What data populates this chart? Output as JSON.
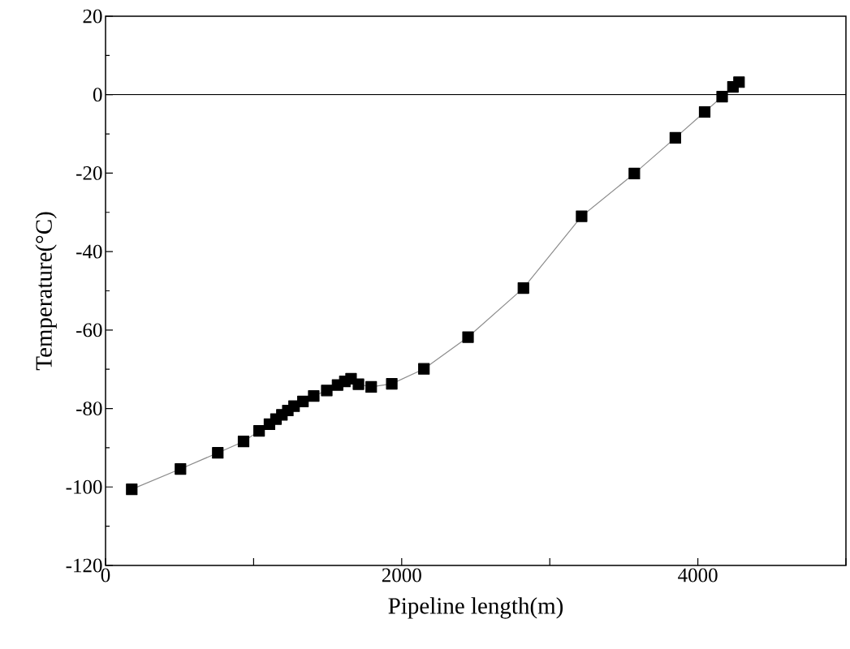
{
  "chart_data": {
    "type": "line",
    "xlabel": "Pipeline length(m)",
    "ylabel": "Temperature(°C)",
    "x": [
      177,
      506,
      758,
      932,
      1037,
      1107,
      1151,
      1191,
      1231,
      1273,
      1333,
      1406,
      1494,
      1567,
      1616,
      1658,
      1708,
      1794,
      1933,
      2150,
      2448,
      2822,
      3215,
      3571,
      3848,
      4046,
      4164,
      4237,
      4278
    ],
    "series": [
      {
        "color": "#000000",
        "values": [
          -100.6,
          -95.4,
          -91.3,
          -88.4,
          -85.7,
          -84.0,
          -82.7,
          -81.6,
          -80.5,
          -79.4,
          -78.2,
          -76.8,
          -75.4,
          -74.0,
          -73.1,
          -72.4,
          -73.8,
          -74.5,
          -73.7,
          -69.9,
          -61.8,
          -49.3,
          -31.0,
          -20.1,
          -11.0,
          -4.4,
          -0.5,
          2.0,
          3.2
        ]
      }
    ],
    "marker": "square",
    "line_style": "solid",
    "xlim": [
      0,
      5000
    ],
    "ylim": [
      -120,
      20
    ],
    "xticks": [
      0,
      {
        "value": 1000,
        "label": null
      },
      2000,
      {
        "value": 3000,
        "label": null
      },
      4000,
      {
        "value": 5000,
        "label": null
      }
    ],
    "yticks": [
      -120,
      -100,
      -80,
      -60,
      -40,
      -20,
      0,
      20
    ],
    "ref_lines": [
      {
        "axis": "y",
        "value": 0,
        "color": "#000000",
        "line_style": "solid"
      }
    ]
  }
}
